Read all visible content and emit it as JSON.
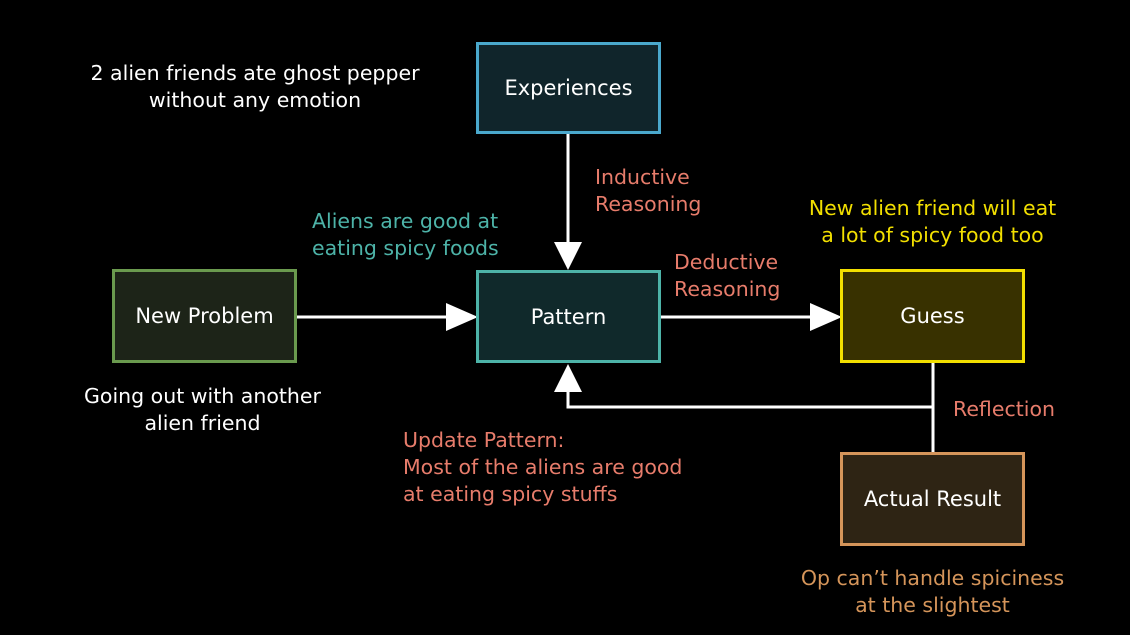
{
  "nodes": {
    "experiences": {
      "label": "Experiences",
      "fill": "#10252b",
      "border": "#4aa8cc"
    },
    "pattern": {
      "label": "Pattern",
      "fill": "#10292b",
      "border": "#4db3a8"
    },
    "new_problem": {
      "label": "New Problem",
      "fill": "#1d2418",
      "border": "#6a9a4e"
    },
    "guess": {
      "label": "Guess",
      "fill": "#383100",
      "border": "#f2df00"
    },
    "actual_result": {
      "label": "Actual Result",
      "fill": "#2e2414",
      "border": "#d5955a"
    }
  },
  "labels": {
    "experience_note": [
      "2 alien friends ate ghost pepper",
      "without any emotion"
    ],
    "inductive": [
      "Inductive",
      "Reasoning"
    ],
    "pattern_note": [
      "Aliens are good at",
      "eating spicy foods"
    ],
    "deductive": [
      "Deductive",
      "Reasoning"
    ],
    "guess_note": [
      "New alien friend will eat",
      "a lot of spicy food too"
    ],
    "problem_note": [
      "Going out with another",
      "alien friend"
    ],
    "reflection": "Reflection",
    "update_pattern": [
      "Update Pattern:",
      "Most of the aliens are good",
      "at eating spicy stuffs"
    ],
    "result_note": [
      "Op can’t handle spiciness",
      "at the slightest"
    ]
  },
  "colors": {
    "white_text": "#ffffff",
    "reasoning_salmon": "#e77c6b",
    "pattern_teal": "#4db3a8",
    "guess_yellow": "#f2df00",
    "result_orange": "#d5955a",
    "connector": "#ffffff"
  }
}
